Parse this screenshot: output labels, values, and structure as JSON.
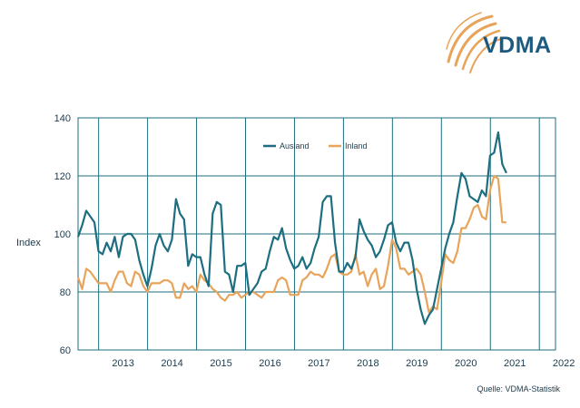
{
  "brand": {
    "name": "VDMA",
    "accent_color": "#e8a45a",
    "text_color": "#1d5a80"
  },
  "source": "Quelle: VDMA-Statistik",
  "chart_data": {
    "type": "line",
    "ylabel": "Index",
    "ylim": [
      60,
      140
    ],
    "yticks": [
      60,
      80,
      100,
      120,
      140
    ],
    "xlim": [
      2012.58,
      2022.33
    ],
    "xtick_labels": [
      "2013",
      "2014",
      "2015",
      "2016",
      "2017",
      "2018",
      "2019",
      "2020",
      "2021",
      "2022"
    ],
    "grid": true,
    "legend_position": "top-center",
    "series": [
      {
        "name": "Ausland",
        "color": "#1d6e80",
        "start": 2012.58,
        "step": 0.0833,
        "values": [
          99,
          103,
          108,
          106,
          104,
          94,
          93,
          97,
          94,
          99,
          92,
          99,
          100,
          100,
          98,
          91,
          86,
          82,
          88,
          96,
          100,
          96,
          94,
          98,
          112,
          107,
          105,
          89,
          93,
          92,
          92,
          86,
          82,
          107,
          111,
          110,
          87,
          86,
          80,
          89,
          89,
          90,
          79,
          81,
          83,
          87,
          88,
          94,
          99,
          98,
          102,
          95,
          91,
          88,
          89,
          92,
          88,
          90,
          95,
          99,
          111,
          113,
          113,
          97,
          87,
          87,
          90,
          88,
          92,
          105,
          101,
          98,
          96,
          92,
          94,
          98,
          103,
          104,
          97,
          94,
          97,
          97,
          91,
          81,
          74,
          69,
          72,
          74,
          81,
          88,
          95,
          100,
          104,
          113,
          121,
          119,
          113,
          112,
          111,
          115,
          113,
          127,
          128,
          135,
          124,
          121
        ]
      },
      {
        "name": "Inland",
        "color": "#e8a45a",
        "start": 2012.58,
        "step": 0.0833,
        "values": [
          85,
          81,
          88,
          87,
          85,
          83,
          83,
          83,
          80,
          84,
          87,
          87,
          83,
          82,
          87,
          86,
          82,
          80,
          83,
          83,
          83,
          84,
          84,
          83,
          78,
          78,
          83,
          81,
          82,
          80,
          86,
          84,
          83,
          81,
          80,
          78,
          77,
          79,
          79,
          80,
          78,
          79,
          80,
          80,
          79,
          78,
          80,
          80,
          80,
          84,
          85,
          84,
          79,
          79,
          79,
          84,
          85,
          87,
          86,
          86,
          85,
          88,
          92,
          93,
          87,
          86,
          86,
          87,
          93,
          86,
          87,
          82,
          86,
          88,
          81,
          82,
          89,
          98,
          95,
          88,
          88,
          86,
          87,
          88,
          86,
          80,
          73,
          75,
          74,
          83,
          93,
          91,
          90,
          94,
          102,
          102,
          105,
          109,
          110,
          106,
          105,
          115,
          120,
          119,
          104,
          104
        ]
      }
    ]
  }
}
